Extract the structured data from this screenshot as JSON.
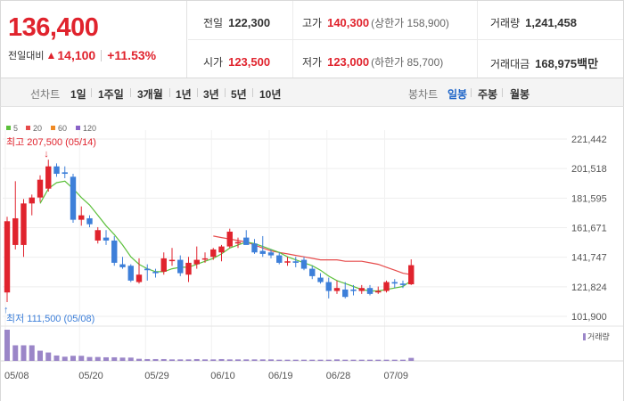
{
  "quote": {
    "price": "136,400",
    "change_label": "전일대비",
    "change_arrow": "▲",
    "change_amount": "14,100",
    "change_rate": "+11.53%"
  },
  "stats": {
    "prev_close": {
      "label": "전일",
      "value": "122,300"
    },
    "high": {
      "label": "고가",
      "value": "140,300",
      "limit": "(상한가 158,900)"
    },
    "volume": {
      "label": "거래량",
      "value": "1,241,458"
    },
    "open": {
      "label": "시가",
      "value": "123,500"
    },
    "low": {
      "label": "저가",
      "value": "123,000",
      "limit": "(하한가 85,700)"
    },
    "amount": {
      "label": "거래대금",
      "value": "168,975",
      "unit": "백만"
    }
  },
  "toolbar": {
    "line_label": "선차트",
    "line_periods": [
      "1일",
      "1주일",
      "3개월",
      "1년",
      "3년",
      "5년",
      "10년"
    ],
    "candle_label": "봉차트",
    "candle_periods": [
      "일봉",
      "주봉",
      "월봉"
    ],
    "active_candle": "일봉"
  },
  "colors": {
    "up": "#e0232d",
    "down": "#3d7fd9",
    "ma5": "#5cc03b",
    "ma20": "#e64b4b",
    "ma60": "#f08a24",
    "ma120": "#8a63c7",
    "volume": "#9b86c8"
  },
  "chart_data": {
    "type": "candlestick",
    "legend": [
      {
        "label": "5",
        "color": "#5cc03b"
      },
      {
        "label": "20",
        "color": "#e64b4b"
      },
      {
        "label": "60",
        "color": "#f08a24"
      },
      {
        "label": "120",
        "color": "#8a63c7"
      }
    ],
    "y_ticks": [
      "221,442",
      "201,518",
      "181,595",
      "161,671",
      "141,747",
      "121,824",
      "101,900"
    ],
    "ylim": [
      101900,
      221442
    ],
    "x_ticks": [
      {
        "label": "05/08",
        "index": 0
      },
      {
        "label": "05/20",
        "index": 9
      },
      {
        "label": "05/29",
        "index": 17
      },
      {
        "label": "06/10",
        "index": 25
      },
      {
        "label": "06/19",
        "index": 32
      },
      {
        "label": "06/28",
        "index": 39
      },
      {
        "label": "07/09",
        "index": 46
      }
    ],
    "high_marker": {
      "label": "최고 207,500 (05/14)",
      "arrow": "↓",
      "index": 5,
      "value": 207500
    },
    "low_marker": {
      "label": "최저 111,500 (05/08)",
      "arrow": "↑",
      "index": 0,
      "value": 111500
    },
    "volume_label": "거래량",
    "candles": [
      {
        "o": 118000,
        "h": 169000,
        "l": 111500,
        "c": 166000
      },
      {
        "o": 150000,
        "h": 193000,
        "l": 147000,
        "c": 168000
      },
      {
        "o": 150000,
        "h": 181000,
        "l": 142000,
        "c": 178000
      },
      {
        "o": 178000,
        "h": 184000,
        "l": 170000,
        "c": 182000
      },
      {
        "o": 182000,
        "h": 197000,
        "l": 179000,
        "c": 194000
      },
      {
        "o": 188000,
        "h": 207500,
        "l": 186000,
        "c": 203000
      },
      {
        "o": 203000,
        "h": 205000,
        "l": 196000,
        "c": 198000
      },
      {
        "o": 199000,
        "h": 203000,
        "l": 195000,
        "c": 198000
      },
      {
        "o": 196000,
        "h": 198000,
        "l": 165000,
        "c": 167000
      },
      {
        "o": 167000,
        "h": 176000,
        "l": 163000,
        "c": 170000
      },
      {
        "o": 168000,
        "h": 170000,
        "l": 162000,
        "c": 164000
      },
      {
        "o": 153000,
        "h": 162000,
        "l": 151000,
        "c": 160000
      },
      {
        "o": 155000,
        "h": 160000,
        "l": 150000,
        "c": 153000
      },
      {
        "o": 153000,
        "h": 156000,
        "l": 136000,
        "c": 138000
      },
      {
        "o": 137000,
        "h": 142000,
        "l": 134000,
        "c": 135000
      },
      {
        "o": 136000,
        "h": 137000,
        "l": 125000,
        "c": 126000
      },
      {
        "o": 125000,
        "h": 141000,
        "l": 124000,
        "c": 130000
      },
      {
        "o": 134000,
        "h": 137000,
        "l": 126000,
        "c": 133000
      },
      {
        "o": 132000,
        "h": 134000,
        "l": 128000,
        "c": 131000
      },
      {
        "o": 132000,
        "h": 145000,
        "l": 130000,
        "c": 141000
      },
      {
        "o": 140000,
        "h": 148000,
        "l": 136000,
        "c": 140000
      },
      {
        "o": 140000,
        "h": 143000,
        "l": 129000,
        "c": 131000
      },
      {
        "o": 130000,
        "h": 142000,
        "l": 125000,
        "c": 138000
      },
      {
        "o": 137000,
        "h": 149000,
        "l": 134000,
        "c": 140000
      },
      {
        "o": 141000,
        "h": 145000,
        "l": 138000,
        "c": 141000
      },
      {
        "o": 142000,
        "h": 148000,
        "l": 140000,
        "c": 147000
      },
      {
        "o": 145000,
        "h": 150000,
        "l": 139000,
        "c": 149000
      },
      {
        "o": 149000,
        "h": 161000,
        "l": 148000,
        "c": 159000
      },
      {
        "o": 151000,
        "h": 155000,
        "l": 148000,
        "c": 152000
      },
      {
        "o": 155000,
        "h": 160000,
        "l": 151000,
        "c": 150000
      },
      {
        "o": 151000,
        "h": 154000,
        "l": 144000,
        "c": 145000
      },
      {
        "o": 146000,
        "h": 156000,
        "l": 142000,
        "c": 144000
      },
      {
        "o": 145000,
        "h": 147000,
        "l": 141000,
        "c": 143000
      },
      {
        "o": 143000,
        "h": 145000,
        "l": 137000,
        "c": 138000
      },
      {
        "o": 139000,
        "h": 142000,
        "l": 136000,
        "c": 139000
      },
      {
        "o": 139000,
        "h": 142000,
        "l": 135000,
        "c": 138000
      },
      {
        "o": 140000,
        "h": 142000,
        "l": 133000,
        "c": 134000
      },
      {
        "o": 134000,
        "h": 136000,
        "l": 127000,
        "c": 129000
      },
      {
        "o": 128000,
        "h": 131000,
        "l": 124000,
        "c": 125000
      },
      {
        "o": 125000,
        "h": 128000,
        "l": 114000,
        "c": 119000
      },
      {
        "o": 119000,
        "h": 126000,
        "l": 117000,
        "c": 121000
      },
      {
        "o": 120000,
        "h": 125000,
        "l": 114000,
        "c": 115000
      },
      {
        "o": 120000,
        "h": 123000,
        "l": 116000,
        "c": 119000
      },
      {
        "o": 119000,
        "h": 123000,
        "l": 117000,
        "c": 121000
      },
      {
        "o": 121000,
        "h": 123000,
        "l": 116000,
        "c": 117000
      },
      {
        "o": 118000,
        "h": 122000,
        "l": 117000,
        "c": 119000
      },
      {
        "o": 119000,
        "h": 126000,
        "l": 118000,
        "c": 125000
      },
      {
        "o": 125000,
        "h": 127000,
        "l": 121000,
        "c": 124000
      },
      {
        "o": 124000,
        "h": 126000,
        "l": 121000,
        "c": 123000
      },
      {
        "o": 123500,
        "h": 140300,
        "l": 123000,
        "c": 136400
      }
    ],
    "ma5": [
      null,
      null,
      null,
      null,
      178000,
      188000,
      192000,
      193000,
      188000,
      182000,
      177000,
      170000,
      163000,
      157000,
      150000,
      142000,
      137000,
      134000,
      132000,
      132000,
      134000,
      135000,
      135000,
      137000,
      139000,
      141000,
      144000,
      148000,
      150000,
      152000,
      151000,
      149000,
      147000,
      145000,
      142000,
      140000,
      138000,
      136000,
      133000,
      129000,
      126000,
      124000,
      122000,
      120000,
      119000,
      119000,
      120000,
      121000,
      122000,
      126000
    ],
    "ma20": [
      null,
      null,
      null,
      null,
      null,
      null,
      null,
      null,
      null,
      null,
      null,
      null,
      null,
      null,
      null,
      null,
      null,
      null,
      null,
      null,
      null,
      null,
      null,
      null,
      null,
      156000,
      155000,
      154000,
      153000,
      152000,
      150000,
      148000,
      146000,
      145000,
      144000,
      143000,
      142000,
      141000,
      140000,
      140000,
      140000,
      139000,
      139000,
      139000,
      138000,
      137000,
      135000,
      133000,
      131000,
      130000
    ],
    "volume": [
      5200,
      2600,
      2600,
      2600,
      1700,
      1400,
      900,
      700,
      850,
      850,
      650,
      650,
      600,
      600,
      550,
      550,
      350,
      300,
      300,
      300,
      250,
      250,
      250,
      300,
      250,
      250,
      300,
      250,
      250,
      250,
      250,
      250,
      250,
      200,
      200,
      200,
      200,
      200,
      200,
      200,
      250,
      200,
      200,
      200,
      200,
      200,
      200,
      200,
      200,
      500
    ]
  }
}
